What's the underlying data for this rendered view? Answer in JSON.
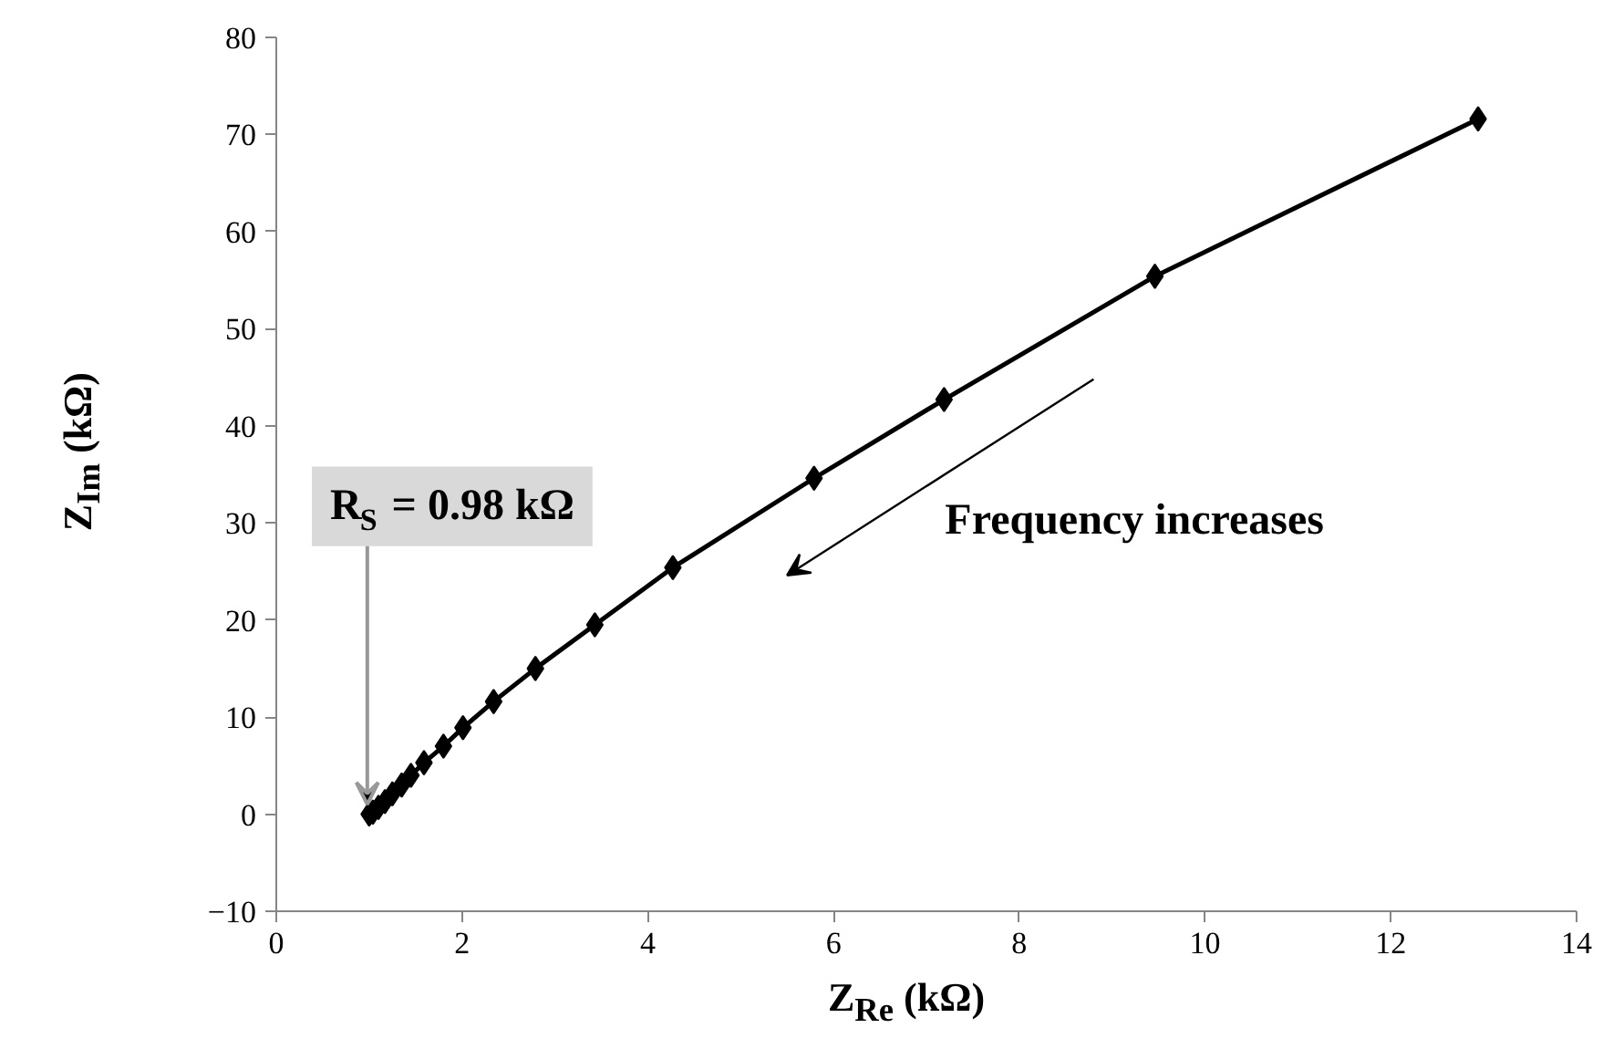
{
  "chart_data": {
    "type": "line",
    "xlabel": "Z$_{Re}$ (kΩ)",
    "ylabel": "Z$_{Im}$ (kΩ)",
    "series": [
      {
        "color": "#000000",
        "x": [
          1.0,
          1.04,
          1.1,
          1.17,
          1.25,
          1.35,
          1.45,
          1.59,
          1.8,
          2.01,
          2.34,
          2.79,
          3.43,
          4.27,
          5.79,
          7.19,
          9.46,
          12.94
        ],
        "values": [
          0.0,
          0.2,
          0.7,
          1.3,
          2.1,
          3.0,
          4.0,
          5.3,
          7.0,
          8.9,
          11.6,
          15.0,
          19.5,
          25.4,
          34.6,
          42.7,
          55.4,
          71.6
        ]
      }
    ],
    "marker": "diamond",
    "line_style": "solid",
    "grid": false,
    "xlim": [
      0,
      14
    ],
    "xticks": [
      0,
      2,
      4,
      6,
      8,
      10,
      12,
      14
    ],
    "ylim": [
      -10,
      80
    ],
    "yticks": [
      -10,
      0,
      10,
      20,
      30,
      40,
      50,
      60,
      70,
      80
    ],
    "annotations": [
      {
        "text": "R$_{S}$ = 0.98 kΩ",
        "x": 0.98,
        "y": 0
      },
      "Frequency increases"
    ]
  }
}
